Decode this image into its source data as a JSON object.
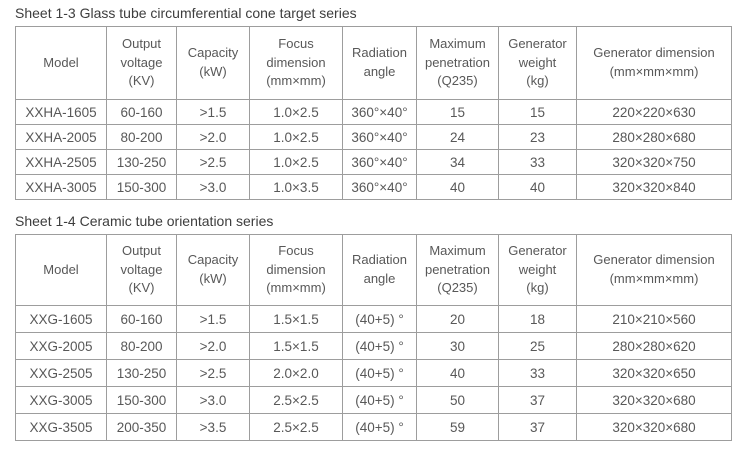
{
  "tables": [
    {
      "title": "Sheet 1-3 Glass tube circumferential cone target series",
      "headers": [
        "Model",
        "Output\nvoltage\n(KV)",
        "Capacity\n(kW)",
        "Focus\ndimension\n(mm×mm)",
        "Radiation\nangle",
        "Maximum\npenetration\n(Q235)",
        "Generator\nweight\n(kg)",
        "Generator dimension\n(mm×mm×mm)"
      ],
      "rows": [
        [
          "XXHA-1605",
          "60-160",
          ">1.5",
          "1.0×2.5",
          "360°×40°",
          "15",
          "15",
          "220×220×630"
        ],
        [
          "XXHA-2005",
          "80-200",
          ">2.0",
          "1.0×2.5",
          "360°×40°",
          "24",
          "23",
          "280×280×680"
        ],
        [
          "XXHA-2505",
          "130-250",
          ">2.5",
          "1.0×2.5",
          "360°×40°",
          "34",
          "33",
          "320×320×750"
        ],
        [
          "XXHA-3005",
          "150-300",
          ">3.0",
          "1.0×3.5",
          "360°×40°",
          "40",
          "40",
          "320×320×840"
        ]
      ]
    },
    {
      "title": "Sheet 1-4 Ceramic tube orientation series",
      "headers": [
        "Model",
        "Output\nvoltage\n(KV)",
        "Capacity\n(kW)",
        "Focus\ndimension\n(mm×mm)",
        "Radiation\nangle",
        "Maximum\npenetration\n(Q235)",
        "Generator\nweight\n(kg)",
        "Generator dimension\n(mm×mm×mm)"
      ],
      "rows": [
        [
          "XXG-1605",
          "60-160",
          ">1.5",
          "1.5×1.5",
          "(40+5) °",
          "20",
          "18",
          "210×210×560"
        ],
        [
          "XXG-2005",
          "80-200",
          ">2.0",
          "1.5×1.5",
          "(40+5) °",
          "30",
          "25",
          "280×280×620"
        ],
        [
          "XXG-2505",
          "130-250",
          ">2.5",
          "2.0×2.0",
          "(40+5) °",
          "40",
          "33",
          "320×320×650"
        ],
        [
          "XXG-3005",
          "150-300",
          ">3.0",
          "2.5×2.5",
          "(40+5) °",
          "50",
          "37",
          "320×320×680"
        ],
        [
          "XXG-3505",
          "200-350",
          ">3.5",
          "2.5×2.5",
          "(40+5) °",
          "59",
          "37",
          "320×320×680"
        ]
      ]
    }
  ],
  "colors": {
    "border": "#9d9d9d",
    "text": "#585858",
    "title_text": "#3d3d3d",
    "background": "#ffffff"
  }
}
